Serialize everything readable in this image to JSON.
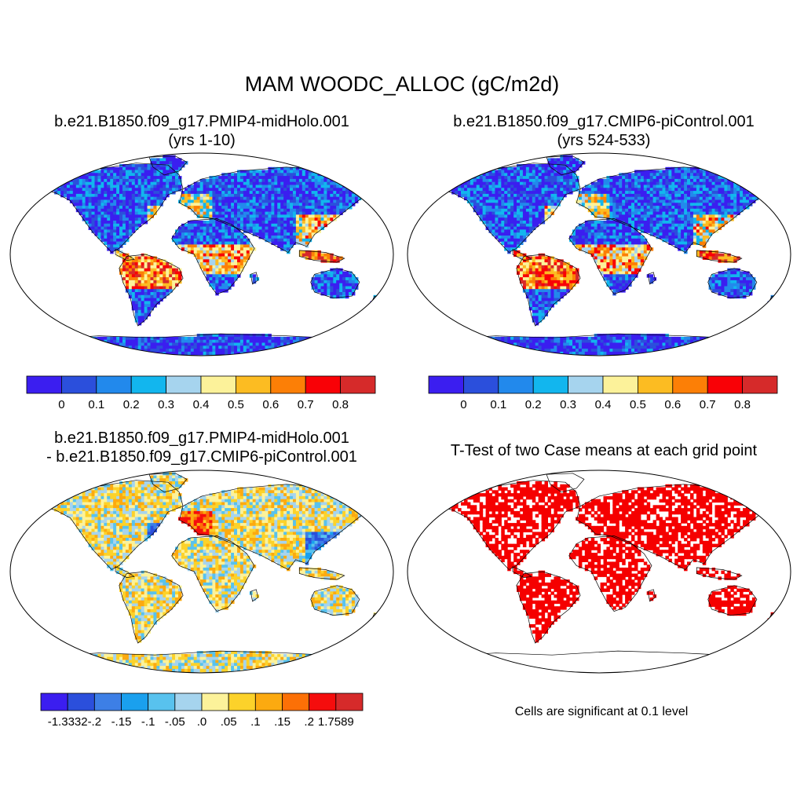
{
  "figure": {
    "title": "MAM WOODC_ALLOC (gC/m2d)"
  },
  "panels": [
    {
      "id": "p1",
      "title_line1": "b.e21.B1850.f09_g17.PMIP4-midHolo.001",
      "title_line2": "(yrs 1-10)",
      "field": "absolute"
    },
    {
      "id": "p2",
      "title_line1": "b.e21.B1850.f09_g17.CMIP6-piControl.001",
      "title_line2": "(yrs 524-533)",
      "field": "absolute"
    },
    {
      "id": "p3",
      "title_line1": "b.e21.B1850.f09_g17.PMIP4-midHolo.001",
      "title_line2": "- b.e21.B1850.f09_g17.CMIP6-piControl.001",
      "field": "difference"
    },
    {
      "id": "p4",
      "title_line1": "T-Test of two Case means at each grid point",
      "field": "significance"
    }
  ],
  "colorbars": {
    "absolute": {
      "colors": [
        "#3b1ef0",
        "#2b4fdc",
        "#2289ec",
        "#12b6ee",
        "#a6d4ee",
        "#fcf29a",
        "#fcbc22",
        "#fc7f06",
        "#f90106",
        "#d62a2a"
      ],
      "labels": [
        "0",
        "0.1",
        "0.2",
        "0.3",
        "0.4",
        "0.5",
        "0.6",
        "0.7",
        "0.8"
      ]
    },
    "difference": {
      "colors": [
        "#3b1ef0",
        "#2b4fdc",
        "#3d7fe6",
        "#1aa0ee",
        "#58c2ee",
        "#a6d4ee",
        "#fcf29a",
        "#fcd22a",
        "#fcaa10",
        "#fc7006",
        "#f50d0d",
        "#d62a2a"
      ],
      "labels": [
        "-1.3332",
        "-.2",
        "-.15",
        "-.1",
        "-.05",
        ".0",
        ".05",
        ".1",
        ".15",
        ".2",
        "1.7589"
      ]
    }
  },
  "colors": {
    "significant": "#f50000",
    "map_outline": "#000000"
  },
  "note": "Cells are significant at 0.1 level"
}
